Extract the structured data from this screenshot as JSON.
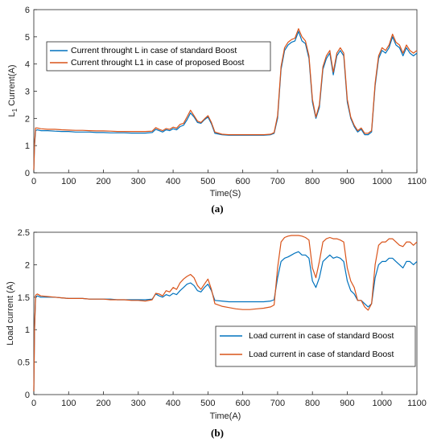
{
  "chart_data": [
    {
      "type": "line",
      "panel_label": "(a)",
      "xlabel": "Time(S)",
      "ylabel": "L",
      "ylabel_sub": "1",
      "ylabel_rest": " Current(A)",
      "xlim": [
        0,
        1100
      ],
      "ylim": [
        0,
        6
      ],
      "xticks": [
        "0",
        "100",
        "200",
        "300",
        "400",
        "500",
        "600",
        "700",
        "800",
        "900",
        "1000",
        "1100"
      ],
      "yticks": [
        "0",
        "1",
        "2",
        "3",
        "4",
        "5",
        "6"
      ],
      "legend_position": "upper-left",
      "x": [
        0,
        2,
        5,
        10,
        20,
        40,
        60,
        80,
        100,
        120,
        140,
        160,
        180,
        200,
        220,
        240,
        260,
        280,
        300,
        320,
        340,
        350,
        360,
        370,
        380,
        390,
        400,
        410,
        420,
        430,
        440,
        450,
        460,
        470,
        480,
        490,
        500,
        510,
        520,
        540,
        560,
        580,
        600,
        620,
        640,
        660,
        680,
        690,
        700,
        710,
        720,
        730,
        740,
        750,
        760,
        770,
        780,
        790,
        800,
        810,
        820,
        830,
        840,
        850,
        860,
        870,
        880,
        890,
        900,
        910,
        920,
        930,
        940,
        950,
        960,
        970,
        980,
        990,
        1000,
        1010,
        1020,
        1030,
        1040,
        1050,
        1060,
        1070,
        1080,
        1090,
        1100
      ],
      "series": [
        {
          "name": "Current throught L in case of standard Boost",
          "color": "#0072BD",
          "values": [
            0.1,
            1.0,
            1.55,
            1.58,
            1.55,
            1.55,
            1.53,
            1.52,
            1.52,
            1.5,
            1.5,
            1.5,
            1.48,
            1.48,
            1.47,
            1.47,
            1.47,
            1.46,
            1.46,
            1.46,
            1.48,
            1.6,
            1.55,
            1.5,
            1.58,
            1.55,
            1.62,
            1.58,
            1.7,
            1.75,
            1.95,
            2.2,
            2.05,
            1.85,
            1.82,
            1.95,
            2.05,
            1.8,
            1.45,
            1.4,
            1.38,
            1.38,
            1.38,
            1.38,
            1.38,
            1.38,
            1.4,
            1.45,
            2.0,
            3.8,
            4.5,
            4.7,
            4.8,
            4.85,
            5.2,
            4.85,
            4.75,
            4.2,
            2.6,
            2.0,
            2.4,
            3.8,
            4.2,
            4.4,
            3.6,
            4.3,
            4.5,
            4.3,
            2.6,
            2.0,
            1.7,
            1.5,
            1.6,
            1.4,
            1.4,
            1.5,
            3.2,
            4.2,
            4.5,
            4.4,
            4.6,
            5.0,
            4.7,
            4.6,
            4.3,
            4.6,
            4.4,
            4.3,
            4.4
          ]
        },
        {
          "name": "Current throught L1 in case of proposed Boost",
          "color": "#D95319",
          "values": [
            0.1,
            1.05,
            1.65,
            1.65,
            1.62,
            1.6,
            1.6,
            1.58,
            1.57,
            1.56,
            1.56,
            1.55,
            1.54,
            1.54,
            1.53,
            1.52,
            1.52,
            1.52,
            1.52,
            1.52,
            1.53,
            1.66,
            1.6,
            1.55,
            1.63,
            1.6,
            1.68,
            1.64,
            1.78,
            1.82,
            2.05,
            2.3,
            2.1,
            1.9,
            1.85,
            1.98,
            2.1,
            1.85,
            1.5,
            1.42,
            1.4,
            1.4,
            1.4,
            1.4,
            1.4,
            1.4,
            1.42,
            1.48,
            2.1,
            3.9,
            4.6,
            4.8,
            4.9,
            4.95,
            5.3,
            5.0,
            4.85,
            4.3,
            2.7,
            2.05,
            2.5,
            3.9,
            4.3,
            4.5,
            3.7,
            4.4,
            4.6,
            4.4,
            2.7,
            2.05,
            1.75,
            1.55,
            1.65,
            1.45,
            1.45,
            1.55,
            3.3,
            4.3,
            4.6,
            4.5,
            4.7,
            5.1,
            4.8,
            4.7,
            4.4,
            4.7,
            4.5,
            4.4,
            4.5
          ]
        }
      ]
    },
    {
      "type": "line",
      "panel_label": "(b)",
      "xlabel": "Time(A)",
      "ylabel": "Load current (A)",
      "xlim": [
        0,
        1100
      ],
      "ylim": [
        0,
        2.5
      ],
      "xticks": [
        "0",
        "100",
        "200",
        "300",
        "400",
        "500",
        "600",
        "700",
        "800",
        "900",
        "1000",
        "1100"
      ],
      "yticks": [
        "0",
        "0.5",
        "1",
        "1.5",
        "2",
        "2.5"
      ],
      "legend_position": "lower-right",
      "x": [
        0,
        2,
        5,
        10,
        20,
        40,
        60,
        80,
        100,
        120,
        140,
        160,
        180,
        200,
        220,
        240,
        260,
        280,
        300,
        320,
        340,
        350,
        360,
        370,
        380,
        390,
        400,
        410,
        420,
        430,
        440,
        450,
        460,
        470,
        480,
        490,
        500,
        510,
        520,
        540,
        560,
        580,
        600,
        620,
        640,
        660,
        680,
        690,
        700,
        710,
        720,
        730,
        740,
        750,
        760,
        770,
        780,
        790,
        800,
        810,
        820,
        830,
        840,
        850,
        860,
        870,
        880,
        890,
        900,
        910,
        920,
        930,
        940,
        950,
        960,
        970,
        980,
        990,
        1000,
        1010,
        1020,
        1030,
        1040,
        1050,
        1060,
        1070,
        1080,
        1090,
        1100
      ],
      "series": [
        {
          "name": "Load current in case of standard Boost",
          "color": "#0072BD",
          "values": [
            0.05,
            1.0,
            1.5,
            1.52,
            1.5,
            1.5,
            1.5,
            1.49,
            1.48,
            1.48,
            1.48,
            1.47,
            1.47,
            1.47,
            1.47,
            1.46,
            1.46,
            1.46,
            1.46,
            1.46,
            1.47,
            1.55,
            1.52,
            1.5,
            1.54,
            1.52,
            1.56,
            1.54,
            1.6,
            1.65,
            1.7,
            1.72,
            1.68,
            1.6,
            1.58,
            1.65,
            1.7,
            1.6,
            1.45,
            1.44,
            1.43,
            1.43,
            1.43,
            1.43,
            1.43,
            1.43,
            1.44,
            1.46,
            1.8,
            2.05,
            2.1,
            2.12,
            2.15,
            2.18,
            2.2,
            2.15,
            2.15,
            2.1,
            1.75,
            1.65,
            1.8,
            2.05,
            2.1,
            2.15,
            2.1,
            2.12,
            2.1,
            2.05,
            1.75,
            1.6,
            1.55,
            1.45,
            1.45,
            1.4,
            1.35,
            1.4,
            1.8,
            2.0,
            2.05,
            2.05,
            2.1,
            2.1,
            2.05,
            2.0,
            1.95,
            2.05,
            2.05,
            2.0,
            2.05
          ]
        },
        {
          "name": "Load current in case of standard Boost",
          "color": "#D95319",
          "values": [
            0.05,
            1.0,
            1.53,
            1.55,
            1.52,
            1.51,
            1.5,
            1.49,
            1.48,
            1.48,
            1.48,
            1.47,
            1.47,
            1.47,
            1.46,
            1.46,
            1.46,
            1.45,
            1.45,
            1.44,
            1.46,
            1.56,
            1.55,
            1.52,
            1.6,
            1.58,
            1.65,
            1.62,
            1.72,
            1.78,
            1.82,
            1.85,
            1.8,
            1.68,
            1.62,
            1.7,
            1.78,
            1.62,
            1.4,
            1.36,
            1.34,
            1.32,
            1.31,
            1.31,
            1.32,
            1.33,
            1.35,
            1.38,
            1.95,
            2.35,
            2.42,
            2.44,
            2.45,
            2.45,
            2.45,
            2.44,
            2.42,
            2.38,
            1.95,
            1.8,
            2.05,
            2.35,
            2.4,
            2.42,
            2.4,
            2.4,
            2.38,
            2.35,
            1.95,
            1.75,
            1.65,
            1.45,
            1.45,
            1.35,
            1.3,
            1.4,
            2.0,
            2.3,
            2.35,
            2.35,
            2.4,
            2.4,
            2.35,
            2.3,
            2.28,
            2.35,
            2.35,
            2.3,
            2.35
          ]
        }
      ]
    }
  ]
}
